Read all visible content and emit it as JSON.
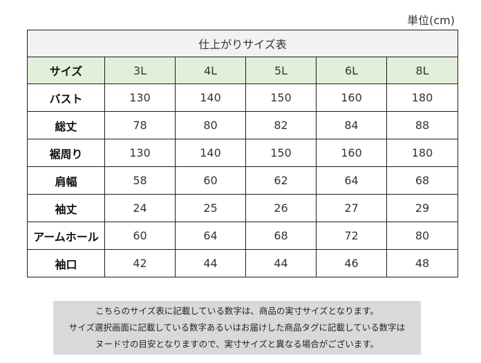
{
  "unit_label": "単位(cm)",
  "table": {
    "title": "仕上がりサイズ表",
    "header_label": "サイズ",
    "sizes": [
      "3L",
      "4L",
      "5L",
      "6L",
      "8L"
    ],
    "rows": [
      {
        "label": "バスト",
        "values": [
          "130",
          "140",
          "150",
          "160",
          "180"
        ]
      },
      {
        "label": "総丈",
        "values": [
          "78",
          "80",
          "82",
          "84",
          "88"
        ]
      },
      {
        "label": "裾周り",
        "values": [
          "130",
          "140",
          "150",
          "160",
          "180"
        ]
      },
      {
        "label": "肩幅",
        "values": [
          "58",
          "60",
          "62",
          "64",
          "68"
        ]
      },
      {
        "label": "袖丈",
        "values": [
          "24",
          "25",
          "26",
          "27",
          "29"
        ]
      },
      {
        "label": "アームホール",
        "values": [
          "60",
          "64",
          "68",
          "72",
          "80"
        ]
      },
      {
        "label": "袖口",
        "values": [
          "42",
          "44",
          "44",
          "46",
          "48"
        ]
      }
    ]
  },
  "note": {
    "lines": [
      "こちらのサイズ表に記載している数字は、商品の実寸サイズとなります。",
      "サイズ選択画面に記載している数字あるいはお届けした商品タグに記載している数字は",
      "ヌード寸の目安となりますので、実寸サイズと異なる場合がございます。"
    ]
  },
  "colors": {
    "title_bg": "#f2f2f2",
    "header_bg": "#e2efda",
    "note_bg": "#d9d9d9",
    "border": "#1a1a1a"
  }
}
